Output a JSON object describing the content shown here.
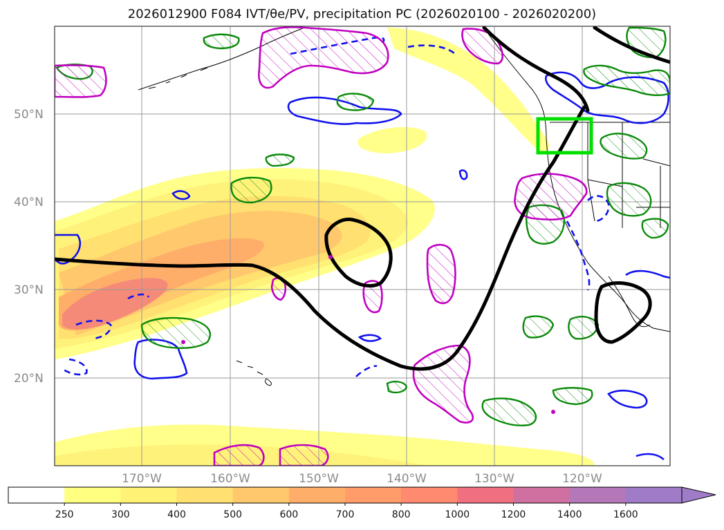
{
  "title": {
    "text": "2026012900 F084 IVT/θe/PV, precipitation PC (2026020100 - 2026020200)"
  },
  "map": {
    "lat_labels": [
      "50°N",
      "40°N",
      "30°N",
      "20°N"
    ],
    "lat_values": [
      50,
      40,
      30,
      20
    ],
    "lon_labels": [
      "170°W",
      "160°W",
      "150°W",
      "140°W",
      "130°W",
      "120°W"
    ],
    "lon_values": [
      -170,
      -160,
      -150,
      -140,
      -130,
      -120
    ],
    "extent": {
      "lon_min": -180,
      "lon_max": -110,
      "lat_min": 10,
      "lat_max": 60
    }
  },
  "colorbar": {
    "ticks": [
      "250",
      "300",
      "400",
      "500",
      "600",
      "700",
      "800",
      "1000",
      "1200",
      "1400",
      "1600"
    ],
    "colors": [
      "#ffffff",
      "#ffff80",
      "#fff275",
      "#ffe070",
      "#ffc86c",
      "#ffae6a",
      "#ff9c6a",
      "#ff8a70",
      "#f07080",
      "#d070a0",
      "#b478b8",
      "#a07cc8"
    ],
    "extend": "max"
  },
  "legend_colors": {
    "ivt_fill": "#ffd84a",
    "pv_contour": "#c000c0",
    "theta_positive": "#0a8a0a",
    "theta_negative": "#1010ee",
    "jet_contour": "#000000",
    "highlight_box": "#00e000"
  }
}
